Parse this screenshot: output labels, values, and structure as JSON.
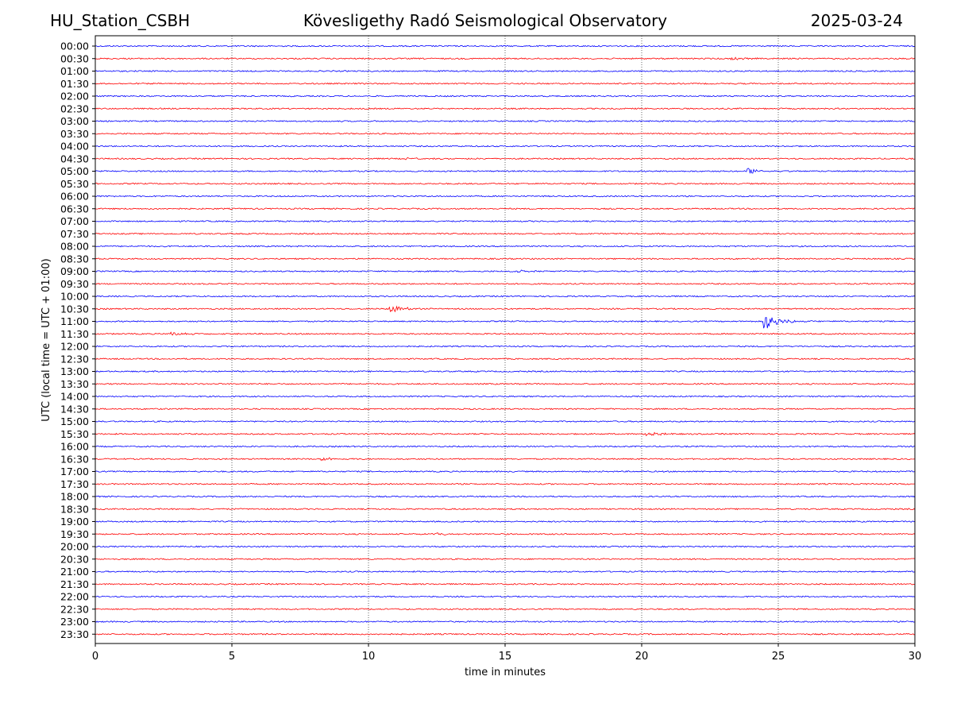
{
  "header": {
    "station": "HU_Station_CSBH",
    "observatory": "Kövesligethy Radó Seismological Observatory",
    "date": "2025-03-24"
  },
  "chart_data": {
    "type": "line",
    "title": "Kövesligethy Radó Seismological Observatory",
    "xlabel": "time in minutes",
    "ylabel": "UTC (local time = UTC + 01:00)",
    "xlim": [
      0,
      30
    ],
    "xticks": [
      "0",
      "5",
      "10",
      "15",
      "20",
      "25",
      "30"
    ],
    "grid": "vertical dotted lines at x ticks",
    "row_labels": [
      "00:00",
      "00:30",
      "01:00",
      "01:30",
      "02:00",
      "02:30",
      "03:00",
      "03:30",
      "04:00",
      "04:30",
      "05:00",
      "05:30",
      "06:00",
      "06:30",
      "07:00",
      "07:30",
      "08:00",
      "08:30",
      "09:00",
      "09:30",
      "10:00",
      "10:30",
      "11:00",
      "11:30",
      "12:00",
      "12:30",
      "13:00",
      "13:30",
      "14:00",
      "14:30",
      "15:00",
      "15:30",
      "16:00",
      "16:30",
      "17:00",
      "17:30",
      "18:00",
      "18:30",
      "19:00",
      "19:30",
      "20:00",
      "20:30",
      "21:00",
      "21:30",
      "22:00",
      "22:30",
      "23:00",
      "23:30"
    ],
    "colors": {
      "even_rows": "#0000ff",
      "odd_rows": "#ff0000"
    },
    "events": [
      {
        "row": "00:30",
        "minute": 23.3,
        "amplitude": 0.25
      },
      {
        "row": "04:30",
        "minute": 11.4,
        "amplitude": 0.15
      },
      {
        "row": "05:00",
        "minute": 23.9,
        "amplitude": 0.45
      },
      {
        "row": "09:00",
        "minute": 15.3,
        "amplitude": 0.2
      },
      {
        "row": "10:30",
        "minute": 10.8,
        "amplitude": 0.45
      },
      {
        "row": "11:00",
        "minute": 24.5,
        "amplitude": 1.1
      },
      {
        "row": "11:30",
        "minute": 2.8,
        "amplitude": 0.25
      },
      {
        "row": "15:30",
        "minute": 20.2,
        "amplitude": 0.3
      },
      {
        "row": "16:30",
        "minute": 8.3,
        "amplitude": 0.25
      },
      {
        "row": "19:30",
        "minute": 12.5,
        "amplitude": 0.2
      }
    ]
  }
}
